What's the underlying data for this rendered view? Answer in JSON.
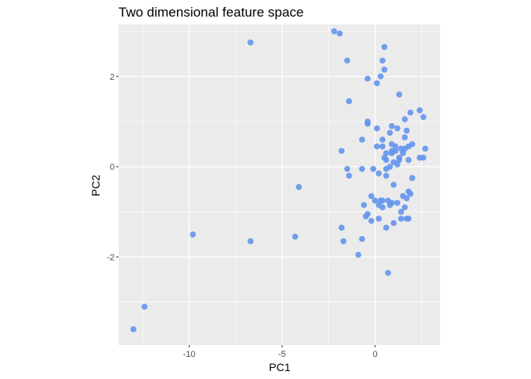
{
  "chart_data": {
    "type": "scatter",
    "title": "Two dimensional feature space",
    "xlabel": "PC1",
    "ylabel": "PC2",
    "xlim": [
      -13.8,
      3.5
    ],
    "ylim": [
      -3.95,
      3.15
    ],
    "x_ticks": [
      -10,
      -5,
      0
    ],
    "x_tick_labels": [
      "-10",
      "-5",
      "0"
    ],
    "y_ticks": [
      -2,
      0,
      2
    ],
    "y_tick_labels": [
      "-2",
      "0",
      "2"
    ],
    "grid": true,
    "panel_color": "#ebebeb",
    "grid_color": "#ffffff",
    "point_color": "#6495ed",
    "x": [
      -13.0,
      -12.4,
      -9.8,
      -6.7,
      -6.7,
      -4.3,
      -4.1,
      -2.2,
      -1.9,
      -1.5,
      -1.4,
      -0.4,
      0.1,
      0.3,
      0.4,
      0.5,
      0.5,
      1.3,
      -0.4,
      -0.4,
      0.9,
      1.2,
      1.6,
      1.9,
      2.4,
      2.6,
      0.1,
      0.4,
      0.8,
      0.9,
      1.1,
      1.4,
      1.6,
      2.0,
      -0.7,
      0.4,
      0.6,
      0.9,
      1.1,
      1.3,
      1.6,
      1.8,
      0.1,
      0.5,
      0.6,
      1.0,
      1.3,
      1.5,
      1.8,
      2.7,
      -1.8,
      0.9,
      1.7,
      -0.1,
      0.6,
      0.8,
      1.2,
      2.0,
      2.4,
      2.6,
      -1.5,
      -1.4,
      -0.7,
      0.2,
      0.6,
      1.0,
      1.8,
      0.4,
      0.9,
      1.5,
      1.7,
      1.9,
      -0.2,
      0.3,
      0.7,
      0.8,
      1.2,
      -0.6,
      0.0,
      0.2,
      0.4,
      1.4,
      1.6,
      1.7,
      -0.5,
      -0.4,
      -0.2,
      0.2,
      0.6,
      1.0,
      1.4,
      1.8,
      -1.8,
      -1.7,
      -0.7,
      -0.9,
      0.7
    ],
    "y": [
      -3.6,
      -3.1,
      -1.5,
      2.75,
      -1.65,
      -1.55,
      -0.45,
      3.0,
      2.95,
      2.35,
      1.45,
      1.95,
      1.85,
      2.0,
      2.35,
      2.15,
      2.65,
      1.6,
      1.0,
      0.95,
      0.9,
      0.85,
      1.05,
      1.2,
      1.25,
      1.1,
      0.85,
      0.6,
      0.75,
      0.5,
      0.45,
      0.4,
      0.65,
      0.5,
      0.6,
      0.45,
      0.3,
      0.3,
      0.35,
      0.2,
      0.4,
      0.45,
      0.45,
      0.2,
      0.15,
      0.1,
      0.15,
      0.3,
      0.15,
      0.4,
      0.35,
      0.35,
      0.8,
      -0.05,
      -0.05,
      0.0,
      0.05,
      -0.25,
      0.2,
      0.2,
      -0.05,
      -0.2,
      -0.05,
      -0.15,
      -0.2,
      -0.4,
      -0.55,
      -0.75,
      -0.8,
      -0.65,
      -0.7,
      -0.6,
      -0.65,
      -0.75,
      -0.75,
      -0.85,
      -0.8,
      -0.85,
      -0.75,
      -0.85,
      -0.9,
      -1.0,
      -0.9,
      -1.15,
      -1.1,
      -1.05,
      -1.2,
      -1.15,
      -1.35,
      -1.25,
      -1.15,
      -1.15,
      -1.35,
      -1.65,
      -1.6,
      -1.95,
      -2.35
    ]
  }
}
